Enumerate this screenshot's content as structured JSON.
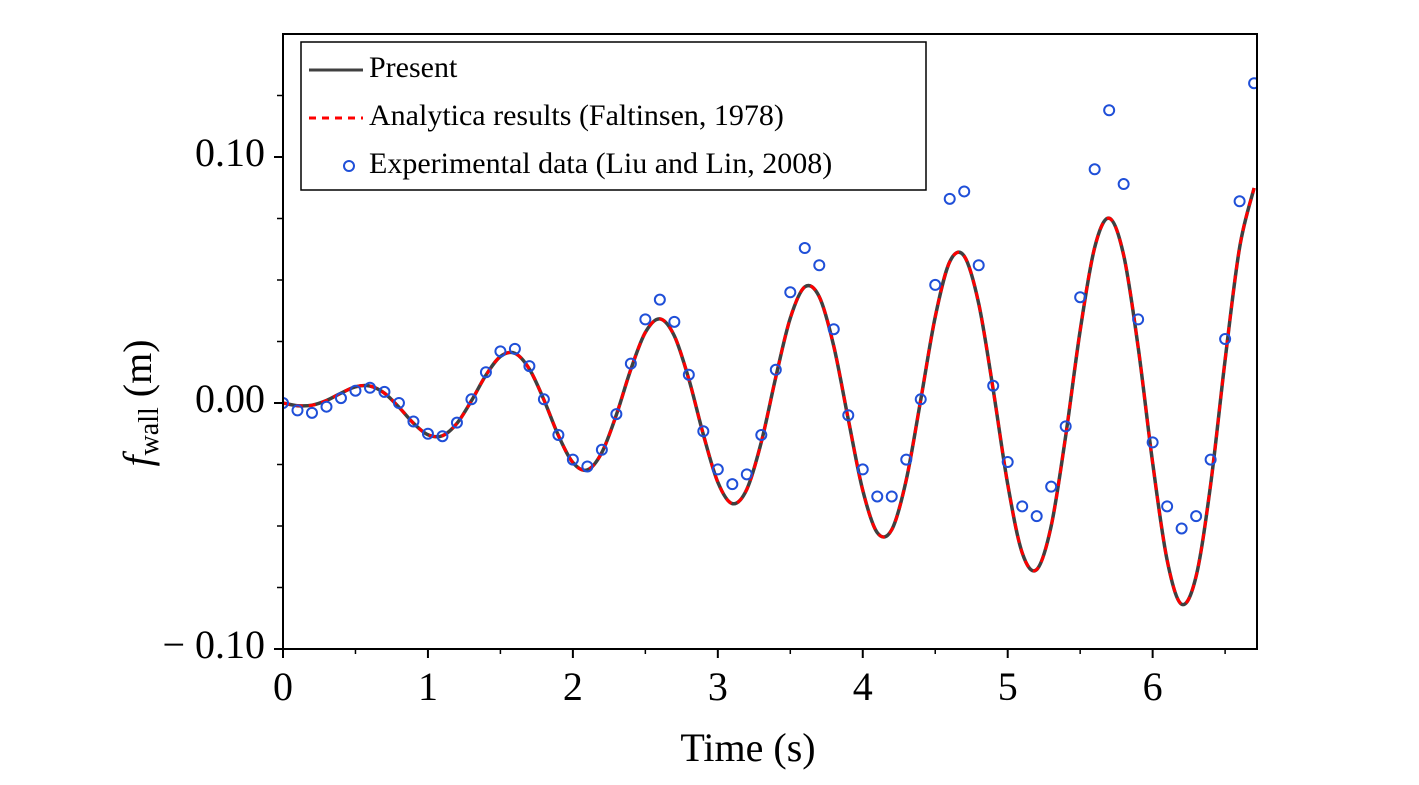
{
  "chart_data": {
    "type": "line",
    "xlabel": "Time (s)",
    "ylabel": {
      "symbol": "f",
      "subscript": "wall",
      "unit": "(m)"
    },
    "xlim": [
      0,
      6.72
    ],
    "ylim": [
      -0.1,
      0.15
    ],
    "xticks": [
      0,
      1,
      2,
      3,
      4,
      5,
      6
    ],
    "yticks": [
      {
        "value": -0.1,
        "label": "− 0.10"
      },
      {
        "value": 0,
        "label": "0.00"
      },
      {
        "value": 0.1,
        "label": "0.10"
      }
    ],
    "yticks_minor": [
      -0.075,
      -0.05,
      -0.025,
      0.025,
      0.05,
      0.075,
      0.125
    ],
    "legend": "upper left",
    "x": [
      0,
      0.1,
      0.2,
      0.3,
      0.4,
      0.5,
      0.6,
      0.7,
      0.8,
      0.9,
      1,
      1.1,
      1.2,
      1.3,
      1.4,
      1.5,
      1.6,
      1.7,
      1.8,
      1.9,
      2,
      2.1,
      2.2,
      2.3,
      2.4,
      2.5,
      2.6,
      2.7,
      2.8,
      2.9,
      3,
      3.1,
      3.2,
      3.3,
      3.4,
      3.5,
      3.6,
      3.7,
      3.8,
      3.9,
      4,
      4.1,
      4.2,
      4.3,
      4.4,
      4.5,
      4.6,
      4.7,
      4.8,
      4.9,
      5,
      5.1,
      5.2,
      5.3,
      5.4,
      5.5,
      5.6,
      5.7,
      5.8,
      5.9,
      6,
      6.1,
      6.2,
      6.3,
      6.4,
      6.5,
      6.6,
      6.7
    ],
    "series": [
      {
        "name": "Present",
        "color": "#404040",
        "style": "solid",
        "values": [
          0,
          -0.0011,
          -0.0009,
          0.001,
          0.004,
          0.0066,
          0.0069,
          0.004,
          -0.0017,
          -0.0082,
          -0.0129,
          -0.0133,
          -0.0083,
          0.0009,
          0.0113,
          0.0189,
          0.0202,
          0.0138,
          0.0013,
          -0.0132,
          -0.0242,
          -0.0272,
          -0.0201,
          -0.0048,
          0.0137,
          0.0287,
          0.0342,
          0.0273,
          0.0097,
          -0.0128,
          -0.0322,
          -0.0409,
          -0.0351,
          -0.0159,
          0.0105,
          0.0345,
          0.0472,
          0.0432,
          0.0231,
          -0.0066,
          -0.0355,
          -0.0527,
          -0.0515,
          -0.0313,
          0.0013,
          0.035,
          0.0574,
          0.0597,
          0.0404,
          0.0054,
          -0.033,
          -0.0609,
          -0.0677,
          -0.05,
          -0.0134,
          0.0295,
          0.0632,
          0.0751,
          0.0601,
          0.0227,
          -0.0243,
          -0.0639,
          -0.0818,
          -0.0704,
          -0.0332,
          0.0175,
          0.0632,
          0.0874
        ]
      },
      {
        "name": "Analytica results (Faltinsen, 1978)",
        "color": "#ff0000",
        "style": "dashed",
        "values": [
          0,
          -0.0011,
          -0.0009,
          0.001,
          0.004,
          0.0066,
          0.0069,
          0.004,
          -0.0017,
          -0.0082,
          -0.0129,
          -0.0133,
          -0.0083,
          0.0009,
          0.0113,
          0.0189,
          0.0202,
          0.0138,
          0.0013,
          -0.0132,
          -0.0242,
          -0.0272,
          -0.0201,
          -0.0048,
          0.0137,
          0.0287,
          0.0342,
          0.0273,
          0.0097,
          -0.0128,
          -0.0322,
          -0.0409,
          -0.0351,
          -0.0159,
          0.0105,
          0.0345,
          0.0472,
          0.0432,
          0.0231,
          -0.0066,
          -0.0355,
          -0.0527,
          -0.0515,
          -0.0313,
          0.0013,
          0.035,
          0.0574,
          0.0597,
          0.0404,
          0.0054,
          -0.033,
          -0.0609,
          -0.0677,
          -0.05,
          -0.0134,
          0.0295,
          0.0632,
          0.0751,
          0.0601,
          0.0227,
          -0.0243,
          -0.0639,
          -0.0818,
          -0.0704,
          -0.0332,
          0.0175,
          0.0632,
          0.0874
        ]
      },
      {
        "name": "Experimental data (Liu and Lin, 2008)",
        "color": "#1f4fd8",
        "style": "marker",
        "values": [
          0,
          -0.003,
          -0.004,
          -0.0015,
          0.002,
          0.005,
          0.0062,
          0.0045,
          0,
          -0.0075,
          -0.0125,
          -0.0135,
          -0.008,
          0.0015,
          0.0125,
          0.021,
          0.022,
          0.015,
          0.0015,
          -0.013,
          -0.023,
          -0.0258,
          -0.019,
          -0.0045,
          0.016,
          0.034,
          0.042,
          0.033,
          0.0115,
          -0.0115,
          -0.027,
          -0.033,
          -0.029,
          -0.013,
          0.0135,
          0.045,
          0.063,
          0.056,
          0.03,
          -0.005,
          -0.027,
          -0.038,
          -0.038,
          -0.023,
          0.0015,
          0.048,
          0.083,
          0.086,
          0.056,
          0.007,
          -0.024,
          -0.042,
          -0.046,
          -0.034,
          -0.0095,
          0.043,
          0.095,
          0.119,
          0.089,
          0.034,
          -0.016,
          -0.042,
          -0.051,
          -0.046,
          -0.023,
          0.026,
          0.082,
          0.13
        ]
      }
    ]
  }
}
